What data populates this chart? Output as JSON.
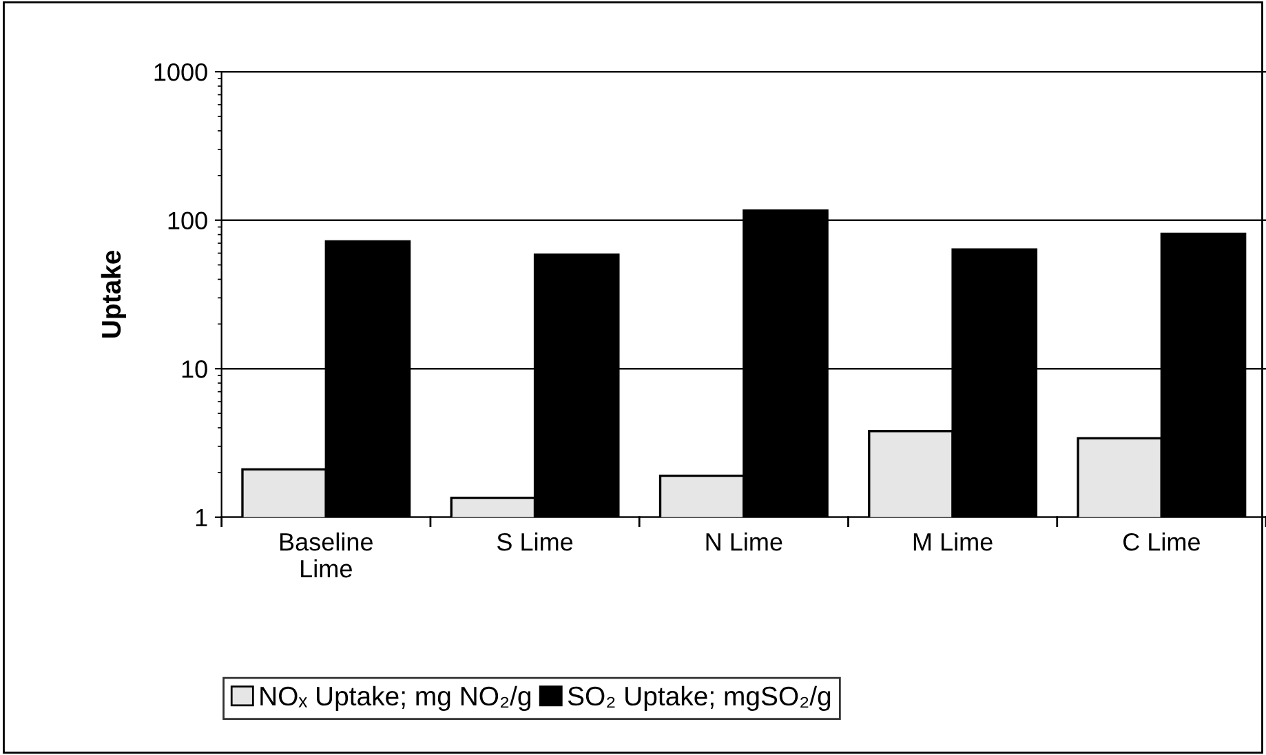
{
  "chart_data": {
    "type": "bar",
    "ylabel": "Uptake",
    "categories": [
      "Baseline\nLime",
      "S Lime",
      "N Lime",
      "M Lime",
      "C Lime"
    ],
    "series": [
      {
        "name": "NOₓ Uptake; mg NO₂/g",
        "color": "#e6e6e6",
        "values": [
          2.1,
          1.35,
          1.9,
          3.8,
          3.4
        ]
      },
      {
        "name": "SO₂ Uptake; mgSO₂/g",
        "color": "#000000",
        "values": [
          72,
          58.6,
          116,
          63.5,
          81
        ]
      }
    ],
    "log": "y",
    "ylim": [
      1,
      1000
    ],
    "yticks": [
      1,
      10,
      100,
      1000
    ],
    "grid": "y",
    "legend": "bottom"
  }
}
